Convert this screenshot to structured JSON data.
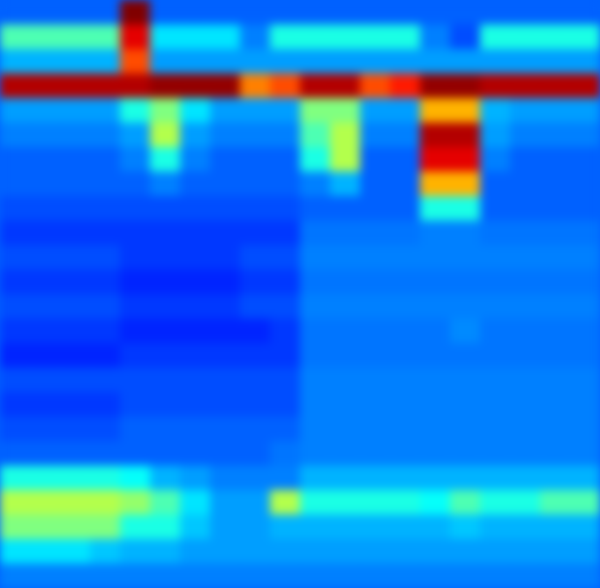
{
  "chart_data": {
    "type": "heatmap",
    "tick_labels": false,
    "zlim": [
      0,
      100
    ],
    "cells": [
      [
        22,
        22,
        22,
        22,
        100,
        22,
        22,
        22,
        22,
        22,
        22,
        22,
        22,
        22,
        22,
        22,
        22,
        22,
        22,
        22
      ],
      [
        45,
        45,
        45,
        45,
        90,
        35,
        35,
        35,
        25,
        40,
        40,
        40,
        40,
        40,
        25,
        20,
        40,
        40,
        40,
        40
      ],
      [
        30,
        30,
        30,
        30,
        80,
        28,
        28,
        28,
        28,
        28,
        28,
        28,
        28,
        28,
        28,
        28,
        28,
        28,
        28,
        28
      ],
      [
        95,
        95,
        95,
        95,
        95,
        98,
        98,
        98,
        75,
        80,
        95,
        95,
        80,
        85,
        98,
        98,
        95,
        95,
        95,
        95
      ],
      [
        28,
        28,
        28,
        28,
        40,
        50,
        35,
        28,
        28,
        28,
        50,
        50,
        28,
        28,
        70,
        70,
        30,
        28,
        28,
        28
      ],
      [
        25,
        25,
        25,
        25,
        28,
        55,
        28,
        25,
        25,
        25,
        45,
        55,
        25,
        25,
        95,
        95,
        28,
        25,
        25,
        25
      ],
      [
        22,
        22,
        22,
        22,
        25,
        40,
        25,
        22,
        22,
        22,
        40,
        55,
        22,
        22,
        90,
        90,
        25,
        22,
        22,
        22
      ],
      [
        22,
        22,
        22,
        22,
        22,
        25,
        22,
        22,
        22,
        22,
        25,
        30,
        22,
        22,
        70,
        70,
        22,
        22,
        22,
        22
      ],
      [
        20,
        20,
        20,
        20,
        20,
        20,
        20,
        20,
        20,
        20,
        22,
        22,
        22,
        22,
        40,
        40,
        22,
        22,
        22,
        22
      ],
      [
        18,
        18,
        18,
        18,
        18,
        18,
        18,
        18,
        18,
        18,
        24,
        24,
        24,
        24,
        25,
        25,
        24,
        24,
        24,
        24
      ],
      [
        20,
        20,
        20,
        20,
        18,
        18,
        18,
        18,
        20,
        20,
        25,
        25,
        25,
        25,
        25,
        25,
        25,
        25,
        25,
        25
      ],
      [
        18,
        18,
        18,
        18,
        16,
        16,
        16,
        16,
        18,
        18,
        24,
        24,
        24,
        24,
        24,
        24,
        24,
        24,
        24,
        24
      ],
      [
        20,
        20,
        20,
        20,
        18,
        18,
        18,
        18,
        20,
        20,
        25,
        25,
        25,
        25,
        25,
        25,
        25,
        25,
        25,
        25
      ],
      [
        18,
        18,
        18,
        18,
        16,
        16,
        16,
        16,
        16,
        18,
        24,
        24,
        24,
        24,
        24,
        26,
        24,
        24,
        24,
        24
      ],
      [
        16,
        16,
        16,
        16,
        18,
        18,
        18,
        18,
        18,
        18,
        24,
        24,
        24,
        24,
        24,
        24,
        24,
        24,
        24,
        24
      ],
      [
        20,
        20,
        20,
        20,
        20,
        20,
        20,
        20,
        20,
        20,
        25,
        25,
        25,
        25,
        25,
        25,
        25,
        25,
        25,
        25
      ],
      [
        18,
        18,
        18,
        18,
        20,
        20,
        20,
        20,
        20,
        20,
        25,
        25,
        25,
        25,
        25,
        25,
        25,
        25,
        25,
        25
      ],
      [
        20,
        20,
        20,
        20,
        22,
        22,
        22,
        22,
        22,
        22,
        25,
        25,
        25,
        25,
        25,
        25,
        25,
        25,
        25,
        25
      ],
      [
        22,
        22,
        22,
        22,
        22,
        22,
        22,
        22,
        22,
        24,
        25,
        25,
        25,
        25,
        25,
        25,
        25,
        25,
        25,
        25
      ],
      [
        40,
        40,
        40,
        40,
        38,
        30,
        28,
        25,
        25,
        25,
        30,
        30,
        30,
        30,
        30,
        30,
        30,
        30,
        30,
        30
      ],
      [
        55,
        55,
        55,
        55,
        52,
        45,
        35,
        28,
        28,
        55,
        40,
        40,
        40,
        40,
        38,
        45,
        40,
        40,
        45,
        45
      ],
      [
        50,
        50,
        50,
        50,
        40,
        40,
        32,
        28,
        28,
        30,
        30,
        30,
        30,
        30,
        30,
        32,
        30,
        30,
        30,
        30
      ],
      [
        35,
        35,
        35,
        32,
        30,
        30,
        28,
        28,
        28,
        28,
        28,
        28,
        28,
        28,
        28,
        28,
        28,
        28,
        28,
        28
      ],
      [
        25,
        25,
        25,
        25,
        25,
        25,
        25,
        25,
        25,
        25,
        25,
        25,
        25,
        25,
        25,
        25,
        25,
        25,
        25,
        25
      ]
    ]
  }
}
